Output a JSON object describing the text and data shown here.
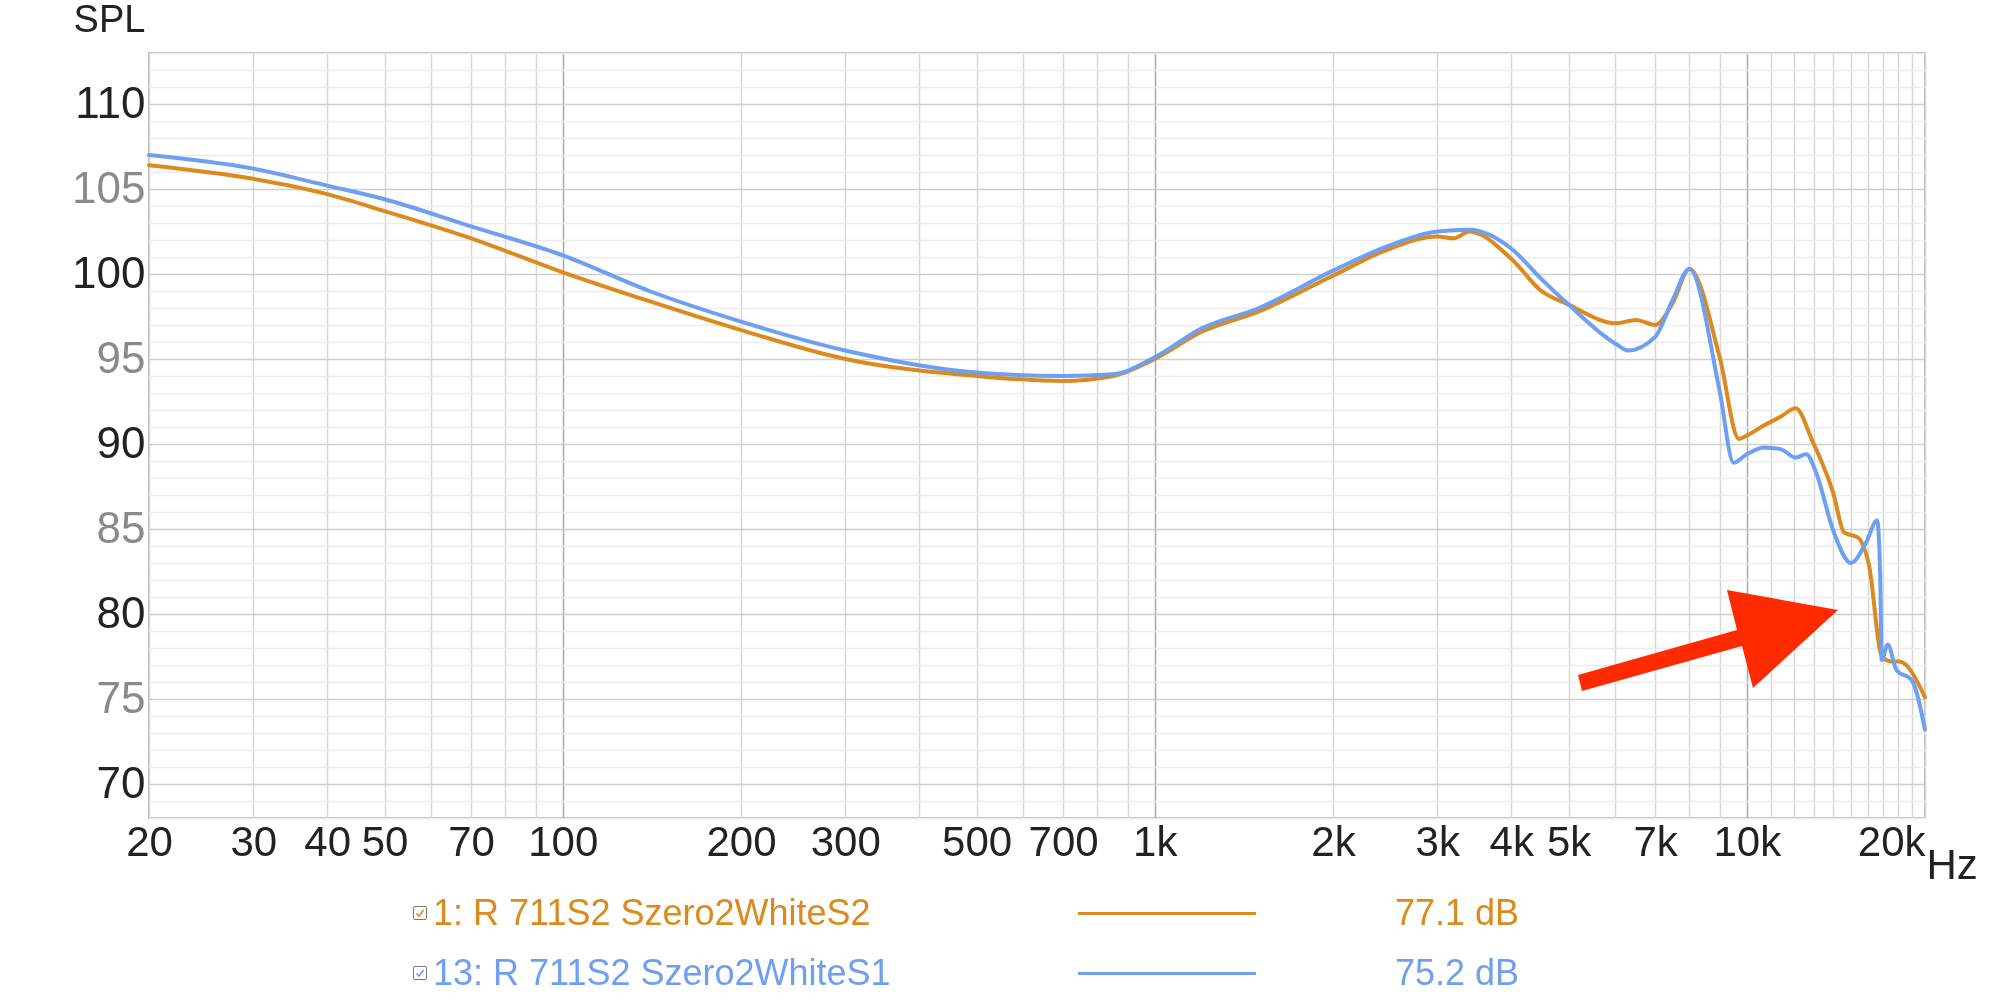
{
  "chart_data": {
    "type": "line",
    "ylabel": "SPL",
    "log": "x",
    "grid": true,
    "legend": "bottom",
    "xlim": [
      20,
      20000
    ],
    "ylim": [
      68,
      113
    ],
    "xticks": [
      20,
      30,
      40,
      50,
      {
        "value": 60,
        "label": null
      },
      70,
      {
        "value": 80,
        "label": null
      },
      {
        "value": 90,
        "label": null
      },
      100,
      200,
      300,
      {
        "value": 400,
        "label": null
      },
      500,
      {
        "value": 600,
        "label": null
      },
      700,
      {
        "value": 800,
        "label": null
      },
      {
        "value": 900,
        "label": null
      },
      {
        "value": 1000,
        "label": "1k"
      },
      {
        "value": 2000,
        "label": "2k"
      },
      {
        "value": 3000,
        "label": "3k"
      },
      {
        "value": 4000,
        "label": "4k"
      },
      {
        "value": 5000,
        "label": "5k"
      },
      {
        "value": 6000,
        "label": null
      },
      {
        "value": 7000,
        "label": "7k"
      },
      {
        "value": 8000,
        "label": null
      },
      {
        "value": 9000,
        "label": null
      },
      {
        "value": 10000,
        "label": "10k"
      },
      {
        "value": 11000,
        "label": null
      },
      {
        "value": 12000,
        "label": null
      },
      {
        "value": 13000,
        "label": null
      },
      {
        "value": 14000,
        "label": null
      },
      {
        "value": 15000,
        "label": null
      },
      {
        "value": 16000,
        "label": null
      },
      {
        "value": 17000,
        "label": null
      },
      {
        "value": 18000,
        "label": null
      },
      {
        "value": 19000,
        "label": null
      },
      {
        "value": 20000,
        "label": "20k"
      }
    ],
    "xlabel": "Hz",
    "yticks": [
      {
        "value": 68,
        "label": null
      },
      {
        "value": 69,
        "label": null
      },
      70,
      {
        "value": 71,
        "label": null
      },
      {
        "value": 72,
        "label": null
      },
      {
        "value": 73,
        "label": null
      },
      {
        "value": 74,
        "label": null
      },
      75,
      {
        "value": 76,
        "label": null
      },
      {
        "value": 77,
        "label": null
      },
      {
        "value": 78,
        "label": null
      },
      {
        "value": 79,
        "label": null
      },
      80,
      {
        "value": 81,
        "label": null
      },
      {
        "value": 82,
        "label": null
      },
      {
        "value": 83,
        "label": null
      },
      {
        "value": 84,
        "label": null
      },
      85,
      {
        "value": 86,
        "label": null
      },
      {
        "value": 87,
        "label": null
      },
      {
        "value": 88,
        "label": null
      },
      {
        "value": 89,
        "label": null
      },
      90,
      {
        "value": 91,
        "label": null
      },
      {
        "value": 92,
        "label": null
      },
      {
        "value": 93,
        "label": null
      },
      {
        "value": 94,
        "label": null
      },
      95,
      {
        "value": 96,
        "label": null
      },
      {
        "value": 97,
        "label": null
      },
      {
        "value": 98,
        "label": null
      },
      {
        "value": 99,
        "label": null
      },
      100,
      {
        "value": 101,
        "label": null
      },
      {
        "value": 102,
        "label": null
      },
      {
        "value": 103,
        "label": null
      },
      {
        "value": 104,
        "label": null
      },
      105,
      {
        "value": 106,
        "label": null
      },
      {
        "value": 107,
        "label": null
      },
      {
        "value": 108,
        "label": null
      },
      {
        "value": 109,
        "label": null
      },
      110,
      {
        "value": 111,
        "label": null
      },
      {
        "value": 112,
        "label": null
      },
      {
        "value": 113,
        "label": null
      }
    ],
    "series": [
      {
        "name": "1: R 711S2 Szero2WhiteS2",
        "color": "#dc8a1e",
        "x": [
          20,
          30,
          40,
          50,
          70,
          100,
          140,
          200,
          300,
          500,
          700,
          850,
          1000,
          1200,
          1500,
          2000,
          2500,
          3000,
          3200,
          3400,
          4000,
          4500,
          5000,
          6000,
          6500,
          7000,
          7500,
          8000,
          9000,
          9700,
          10000,
          10700,
          11400,
          12100,
          12900,
          14000,
          14600,
          15400,
          16100,
          16900,
          17600,
          18100,
          20000
        ],
        "values": [
          106.4,
          105.6,
          104.7,
          103.7,
          102.1,
          100.1,
          98.4,
          96.7,
          95.0,
          94.0,
          93.7,
          94.0,
          95.0,
          96.6,
          97.8,
          99.9,
          101.5,
          102.2,
          102.1,
          102.5,
          100.9,
          99.0,
          98.2,
          97.1,
          97.3,
          97.0,
          98.3,
          100.3,
          95.1,
          90.3,
          90.5,
          91.1,
          91.6,
          92.1,
          90.2,
          87.1,
          84.8,
          84.5,
          82.8,
          77.5,
          77.2,
          77.2,
          75.1
        ]
      },
      {
        "name": "13: R 711S2 Szero2WhiteS1",
        "color": "#6f9ff0",
        "x": [
          20,
          30,
          40,
          50,
          70,
          100,
          140,
          200,
          300,
          500,
          700,
          850,
          1000,
          1200,
          1500,
          2000,
          2500,
          3000,
          3400,
          4000,
          4500,
          5000,
          6000,
          6300,
          7000,
          7500,
          8000,
          9000,
          9500,
          10000,
          10700,
          11400,
          12100,
          12600,
          13100,
          14000,
          15000,
          15900,
          16600,
          16800,
          16900,
          17300,
          17900,
          19000,
          20000
        ],
        "values": [
          107.0,
          106.2,
          105.2,
          104.4,
          102.8,
          101.1,
          99.0,
          97.2,
          95.5,
          94.2,
          94.0,
          94.1,
          95.1,
          96.8,
          98.0,
          100.2,
          101.7,
          102.5,
          102.6,
          101.5,
          99.7,
          98.2,
          95.9,
          95.5,
          96.3,
          98.5,
          100.3,
          93.1,
          88.9,
          89.4,
          89.8,
          89.7,
          89.2,
          89.4,
          88.3,
          84.9,
          83.0,
          84.2,
          85.5,
          82.4,
          77.3,
          78.2,
          76.7,
          76.1,
          73.2
        ]
      }
    ],
    "annotations": [
      "77.1 dB",
      "75.2 dB"
    ]
  }
}
